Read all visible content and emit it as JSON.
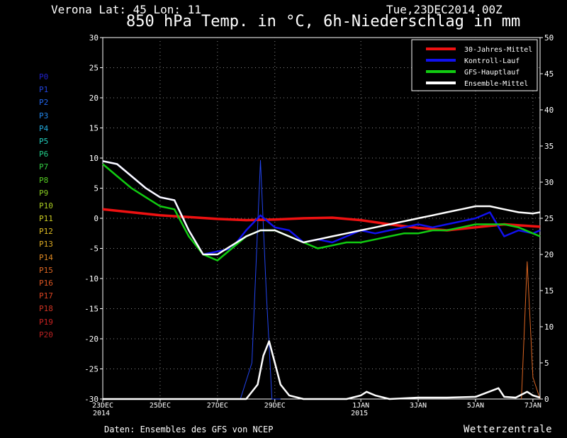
{
  "header": {
    "location": "Verona   Lat: 45 Lon: 11",
    "run": "Tue,23DEC2014 00Z",
    "title": "850 hPa Temp. in °C, 6h-Niederschlag in mm"
  },
  "footer": {
    "source": "Daten: Ensembles des GFS von NCEP",
    "brand": "Wetterzentrale"
  },
  "members": [
    {
      "label": "P0",
      "color": "#2222cc"
    },
    {
      "label": "P1",
      "color": "#2244dd"
    },
    {
      "label": "P2",
      "color": "#2266ee"
    },
    {
      "label": "P3",
      "color": "#2288ee"
    },
    {
      "label": "P4",
      "color": "#22aadd"
    },
    {
      "label": "P5",
      "color": "#22ccbb"
    },
    {
      "label": "P6",
      "color": "#22cc88"
    },
    {
      "label": "P7",
      "color": "#33cc44"
    },
    {
      "label": "P8",
      "color": "#55cc22"
    },
    {
      "label": "P9",
      "color": "#88cc22"
    },
    {
      "label": "P10",
      "color": "#aacc22"
    },
    {
      "label": "P11",
      "color": "#cccc22"
    },
    {
      "label": "P12",
      "color": "#ddbb22"
    },
    {
      "label": "P13",
      "color": "#ddaa22"
    },
    {
      "label": "P14",
      "color": "#dd8822"
    },
    {
      "label": "P15",
      "color": "#dd6622"
    },
    {
      "label": "P16",
      "color": "#dd5522"
    },
    {
      "label": "P17",
      "color": "#dd4422"
    },
    {
      "label": "P18",
      "color": "#cc3322"
    },
    {
      "label": "P19",
      "color": "#cc2222"
    },
    {
      "label": "P20",
      "color": "#bb2222"
    }
  ],
  "chart_data": {
    "type": "line",
    "x_unit": "days since 23DEC2014 00Z",
    "xlim": [
      0,
      15.25
    ],
    "ylim": [
      -30,
      30
    ],
    "y2lim": [
      0,
      50
    ],
    "y_ticks": [
      30,
      25,
      20,
      15,
      10,
      5,
      0,
      -5,
      -10,
      -15,
      -20,
      -25,
      -30
    ],
    "y2_ticks": [
      50,
      45,
      40,
      35,
      30,
      25,
      20,
      15,
      10,
      5,
      0
    ],
    "x_ticks": [
      {
        "day": 0,
        "label": "23DEC",
        "label2": "2014"
      },
      {
        "day": 2,
        "label": "25DEC",
        "label2": ""
      },
      {
        "day": 4,
        "label": "27DEC",
        "label2": ""
      },
      {
        "day": 6,
        "label": "29DEC",
        "label2": ""
      },
      {
        "day": 9,
        "label": "1JAN",
        "label2": "2015"
      },
      {
        "day": 11,
        "label": "3JAN",
        "label2": ""
      },
      {
        "day": 13,
        "label": "5JAN",
        "label2": ""
      },
      {
        "day": 15,
        "label": "7JAN",
        "label2": ""
      }
    ],
    "grid": true,
    "legend_position": "top-right",
    "legend": [
      {
        "name": "30-Jahres-Mittel",
        "color": "#ee1111"
      },
      {
        "name": "Kontroll-Lauf",
        "color": "#1111ee"
      },
      {
        "name": "GFS-Hauptlauf",
        "color": "#11cc11"
      },
      {
        "name": "Ensemble-Mittel",
        "color": "#ffffff"
      }
    ],
    "temperature": {
      "climatology": {
        "color": "#ee1111",
        "x": [
          0,
          1,
          2,
          3,
          4,
          5,
          6,
          7,
          8,
          9,
          10,
          11,
          12,
          13,
          14,
          15.25
        ],
        "y": [
          1.5,
          1,
          0.5,
          0.2,
          -0.1,
          -0.3,
          -0.2,
          0,
          0.1,
          -0.3,
          -1,
          -1.6,
          -2,
          -1.5,
          -1,
          -1.4
        ]
      },
      "control": {
        "color": "#1111ee",
        "x": [
          0,
          0.5,
          1,
          1.5,
          2,
          2.5,
          3,
          3.5,
          4,
          4.5,
          5,
          5.5,
          6,
          6.5,
          7,
          7.5,
          8,
          8.5,
          9,
          9.5,
          10,
          10.5,
          11,
          11.5,
          12,
          12.5,
          13,
          13.5,
          14,
          14.5,
          15,
          15.25
        ],
        "y": [
          9.5,
          9,
          7,
          5,
          3.5,
          3,
          -2,
          -6,
          -5.5,
          -5,
          -2,
          0.5,
          -1.5,
          -2,
          -4,
          -3.5,
          -4,
          -3,
          -2,
          -2.5,
          -2,
          -1.5,
          -1,
          -1.5,
          -1,
          -0.5,
          0,
          1,
          -3,
          -2,
          -2.5,
          -2
        ]
      },
      "main": {
        "color": "#11cc11",
        "x": [
          0,
          0.5,
          1,
          1.5,
          2,
          2.5,
          3,
          3.5,
          4,
          4.5,
          5,
          5.5,
          6,
          6.5,
          7,
          7.5,
          8,
          8.5,
          9,
          9.5,
          10,
          10.5,
          11,
          11.5,
          12,
          12.5,
          13,
          13.5,
          14,
          14.5,
          15,
          15.25
        ],
        "y": [
          9,
          7,
          5,
          3.5,
          2,
          1.5,
          -3,
          -6,
          -7,
          -5,
          -3,
          -2,
          -2,
          -3,
          -4,
          -5,
          -4.5,
          -4,
          -4,
          -3.5,
          -3,
          -2.5,
          -2.5,
          -2,
          -2,
          -1.5,
          -1,
          -1,
          -1,
          -1.5,
          -2.5,
          -3
        ]
      },
      "mean": {
        "color": "#ffffff",
        "x": [
          0,
          0.5,
          1,
          1.5,
          2,
          2.5,
          3,
          3.5,
          4,
          4.5,
          5,
          5.5,
          6,
          6.5,
          7,
          7.5,
          8,
          8.5,
          9,
          9.5,
          10,
          10.5,
          11,
          11.5,
          12,
          12.5,
          13,
          13.5,
          14,
          14.5,
          15,
          15.25
        ],
        "y": [
          9.5,
          9,
          7,
          5,
          3.5,
          3,
          -2,
          -6,
          -6,
          -4.5,
          -3,
          -2,
          -2,
          -3,
          -4,
          -3.5,
          -3,
          -2.5,
          -2,
          -1.5,
          -1,
          -0.5,
          0,
          0.5,
          1,
          1.5,
          2,
          2,
          1.5,
          1,
          0.8,
          1
        ]
      }
    },
    "precipitation": {
      "mean": {
        "color": "#ffffff",
        "x": [
          0,
          4.5,
          5,
          5.4,
          5.6,
          5.8,
          6,
          6.2,
          6.5,
          7,
          8.5,
          9,
          9.2,
          9.5,
          10,
          11,
          12,
          13,
          13.8,
          14,
          14.4,
          14.8,
          15,
          15.25
        ],
        "y": [
          0,
          0,
          0,
          2,
          6,
          8,
          5,
          2,
          0.5,
          0,
          0,
          0.5,
          1,
          0.5,
          0,
          0.2,
          0.2,
          0.3,
          1.5,
          0.3,
          0.2,
          1,
          0.5,
          0.2
        ]
      },
      "spike_member_max": {
        "color": "#2244ee",
        "x": [
          4.8,
          5.2,
          5.5,
          5.7,
          5.9,
          6.2
        ],
        "y": [
          0,
          5,
          33,
          15,
          0,
          0
        ]
      },
      "peak_member_max": {
        "color": "#dd6622",
        "x": [
          14.6,
          14.8,
          15,
          15.25
        ],
        "y": [
          0,
          19,
          3,
          0
        ]
      }
    }
  }
}
